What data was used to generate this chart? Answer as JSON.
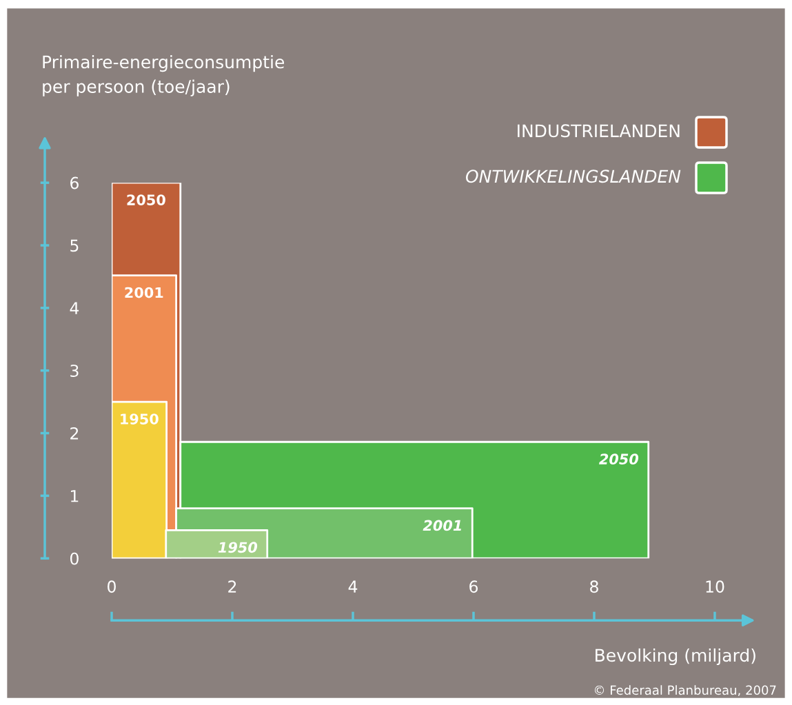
{
  "chart_data": {
    "type": "area",
    "ylabel": "Primaire-energieconsumptie\nper persoon (toe/jaar)",
    "xlabel": "Bevolking (miljard)",
    "xlim": [
      0,
      10
    ],
    "xticks": [
      0,
      2,
      4,
      6,
      8,
      10
    ],
    "ylim": [
      0,
      6
    ],
    "yticks": [
      0,
      1,
      2,
      3,
      4,
      5,
      6
    ],
    "grid": false,
    "legend": false,
    "series": [
      {
        "name": "2050",
        "color": "#bf5f38",
        "x": [
          0,
          1.14
        ],
        "values": [
          6.0,
          6.0
        ]
      },
      {
        "name": "2001",
        "color": "#ef8c52",
        "x": [
          0,
          1.07
        ],
        "values": [
          4.52,
          4.52
        ]
      },
      {
        "name": "1950",
        "color": "#f3cf3a",
        "x": [
          0,
          0.91
        ],
        "values": [
          2.5,
          2.5
        ]
      },
      {
        "name": "2050",
        "color": "#4fb84b",
        "x": [
          1.14,
          8.9
        ],
        "values": [
          1.86,
          1.86
        ]
      },
      {
        "name": "2001",
        "color": "#72c06a",
        "x": [
          1.07,
          5.98
        ],
        "values": [
          0.8,
          0.8
        ]
      },
      {
        "name": "1950",
        "color": "#a3cf87",
        "x": [
          0.9,
          2.58
        ],
        "values": [
          0.45,
          0.45
        ]
      }
    ],
    "annotations": [
      "INDUSTRIELANDEN",
      "ONTWIKKELINGSLANDEN",
      "© Federaal Planbureau, 2007"
    ]
  }
}
